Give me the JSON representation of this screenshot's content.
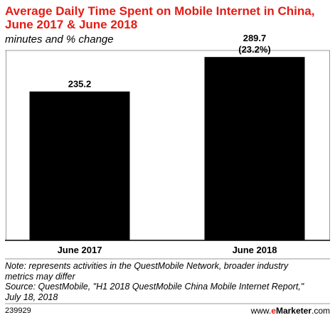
{
  "header": {
    "title": "Average Daily Time Spent on Mobile Internet in China, June 2017 & June 2018",
    "subtitle": "minutes and % change"
  },
  "chart_data": {
    "type": "bar",
    "categories": [
      "June 2017",
      "June 2018"
    ],
    "values": [
      235.2,
      289.7
    ],
    "value_labels": [
      "235.2",
      "289.7"
    ],
    "change_labels": [
      "",
      "(23.2%)"
    ],
    "ylim": [
      0,
      300
    ],
    "grid": false,
    "legend": "none",
    "colors": {
      "bar": "#000000",
      "title": "#e41b13"
    }
  },
  "notes": {
    "line1": "Note: represents activities in the QuestMobile Network, broader industry",
    "line2": "metrics may differ",
    "line3": "Source: QuestMobile, \"H1 2018 QuestMobile China Mobile Internet Report,\"",
    "line4": "July 18, 2018"
  },
  "footer": {
    "id": "239929",
    "brand_prefix": "www.",
    "brand_e": "e",
    "brand_main": "Marketer",
    "brand_suffix": ".com"
  }
}
